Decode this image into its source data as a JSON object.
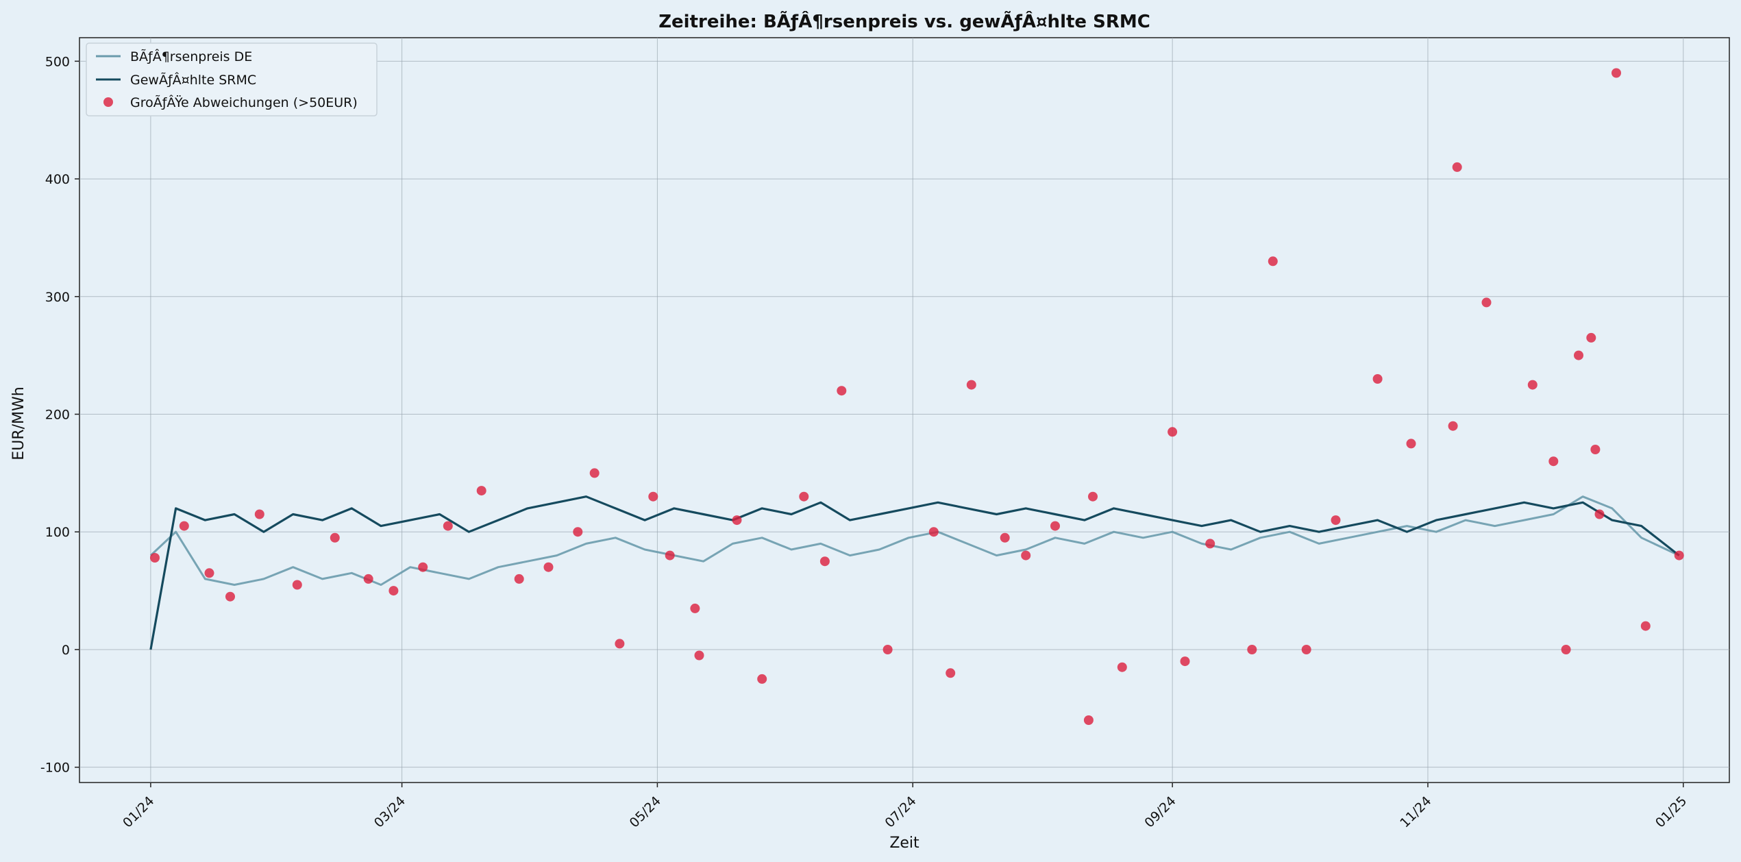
{
  "chart_data": {
    "type": "line",
    "title": "Zeitreihe: BÃƒÂ¶rsenpreis vs. gewÃƒÂ¤hlte SRMC",
    "xlabel": "Zeit",
    "ylabel": "EUR/MWh",
    "xlim": [
      "2023-12-15",
      "2025-01-12"
    ],
    "ylim": [
      -113,
      520
    ],
    "yticks": [
      -100,
      0,
      100,
      200,
      300,
      400,
      500
    ],
    "xticks": [
      {
        "date": "2024-01-01",
        "label": "01/24"
      },
      {
        "date": "2024-03-01",
        "label": "03/24"
      },
      {
        "date": "2024-05-01",
        "label": "05/24"
      },
      {
        "date": "2024-07-01",
        "label": "07/24"
      },
      {
        "date": "2024-09-01",
        "label": "09/24"
      },
      {
        "date": "2024-11-01",
        "label": "11/24"
      },
      {
        "date": "2025-01-01",
        "label": "01/25"
      }
    ],
    "grid": true,
    "legend_position": "top-left",
    "series": [
      {
        "name": "BÃƒÂ¶rsenpreis DE",
        "color": "#6a9bac",
        "x": [
          "2024-01-01",
          "2024-01-07",
          "2024-01-14",
          "2024-01-21",
          "2024-01-28",
          "2024-02-04",
          "2024-02-11",
          "2024-02-18",
          "2024-02-25",
          "2024-03-03",
          "2024-03-10",
          "2024-03-17",
          "2024-03-24",
          "2024-03-31",
          "2024-04-07",
          "2024-04-14",
          "2024-04-21",
          "2024-04-28",
          "2024-05-05",
          "2024-05-12",
          "2024-05-19",
          "2024-05-26",
          "2024-06-02",
          "2024-06-09",
          "2024-06-16",
          "2024-06-23",
          "2024-06-30",
          "2024-07-07",
          "2024-07-14",
          "2024-07-21",
          "2024-07-28",
          "2024-08-04",
          "2024-08-11",
          "2024-08-18",
          "2024-08-25",
          "2024-09-01",
          "2024-09-08",
          "2024-09-15",
          "2024-09-22",
          "2024-09-29",
          "2024-10-06",
          "2024-10-13",
          "2024-10-20",
          "2024-10-27",
          "2024-11-03",
          "2024-11-10",
          "2024-11-17",
          "2024-11-24",
          "2024-12-01",
          "2024-12-08",
          "2024-12-15",
          "2024-12-22",
          "2024-12-31"
        ],
        "values": [
          80,
          100,
          60,
          55,
          60,
          70,
          60,
          65,
          55,
          70,
          65,
          60,
          70,
          75,
          80,
          90,
          95,
          85,
          80,
          75,
          90,
          95,
          85,
          90,
          80,
          85,
          95,
          100,
          90,
          80,
          85,
          95,
          90,
          100,
          95,
          100,
          90,
          85,
          95,
          100,
          90,
          95,
          100,
          105,
          100,
          110,
          105,
          110,
          115,
          130,
          120,
          95,
          80
        ]
      },
      {
        "name": "GewÃƒÂ¤hlte SRMC",
        "color": "#154a5e",
        "x": [
          "2024-01-01",
          "2024-01-07",
          "2024-01-14",
          "2024-01-21",
          "2024-01-28",
          "2024-02-04",
          "2024-02-11",
          "2024-02-18",
          "2024-02-25",
          "2024-03-03",
          "2024-03-10",
          "2024-03-17",
          "2024-03-24",
          "2024-03-31",
          "2024-04-07",
          "2024-04-14",
          "2024-04-21",
          "2024-04-28",
          "2024-05-05",
          "2024-05-12",
          "2024-05-19",
          "2024-05-26",
          "2024-06-02",
          "2024-06-09",
          "2024-06-16",
          "2024-06-23",
          "2024-06-30",
          "2024-07-07",
          "2024-07-14",
          "2024-07-21",
          "2024-07-28",
          "2024-08-04",
          "2024-08-11",
          "2024-08-18",
          "2024-08-25",
          "2024-09-01",
          "2024-09-08",
          "2024-09-15",
          "2024-09-22",
          "2024-09-29",
          "2024-10-06",
          "2024-10-13",
          "2024-10-20",
          "2024-10-27",
          "2024-11-03",
          "2024-11-10",
          "2024-11-17",
          "2024-11-24",
          "2024-12-01",
          "2024-12-08",
          "2024-12-15",
          "2024-12-22",
          "2024-12-31"
        ],
        "values": [
          0,
          120,
          110,
          115,
          100,
          115,
          110,
          120,
          105,
          110,
          115,
          100,
          110,
          120,
          125,
          130,
          120,
          110,
          120,
          115,
          110,
          120,
          115,
          125,
          110,
          115,
          120,
          125,
          120,
          115,
          120,
          115,
          110,
          120,
          115,
          110,
          105,
          110,
          100,
          105,
          100,
          105,
          110,
          100,
          110,
          115,
          120,
          125,
          120,
          125,
          110,
          105,
          80
        ]
      },
      {
        "name": "GroÃƒÂŸe Abweichungen (>50EUR)",
        "type": "scatter",
        "color": "#dc1e3c",
        "x": [
          "2024-01-02",
          "2024-01-09",
          "2024-01-15",
          "2024-01-20",
          "2024-01-27",
          "2024-02-05",
          "2024-02-14",
          "2024-02-22",
          "2024-02-28",
          "2024-03-06",
          "2024-03-12",
          "2024-03-20",
          "2024-03-29",
          "2024-04-05",
          "2024-04-12",
          "2024-04-16",
          "2024-04-22",
          "2024-04-30",
          "2024-05-04",
          "2024-05-10",
          "2024-05-11",
          "2024-05-20",
          "2024-05-26",
          "2024-06-05",
          "2024-06-10",
          "2024-06-14",
          "2024-06-25",
          "2024-07-06",
          "2024-07-10",
          "2024-07-15",
          "2024-07-23",
          "2024-07-28",
          "2024-08-04",
          "2024-08-12",
          "2024-08-13",
          "2024-08-20",
          "2024-09-01",
          "2024-09-04",
          "2024-09-10",
          "2024-09-20",
          "2024-09-25",
          "2024-10-03",
          "2024-10-10",
          "2024-10-20",
          "2024-10-28",
          "2024-11-07",
          "2024-11-08",
          "2024-11-15",
          "2024-11-26",
          "2024-12-01",
          "2024-12-04",
          "2024-12-07",
          "2024-12-10",
          "2024-12-11",
          "2024-12-12",
          "2024-12-16",
          "2024-12-23",
          "2024-12-31"
        ],
        "values": [
          78,
          105,
          65,
          45,
          115,
          55,
          95,
          60,
          50,
          70,
          105,
          135,
          60,
          70,
          100,
          150,
          5,
          130,
          80,
          35,
          -5,
          110,
          -25,
          130,
          75,
          220,
          0,
          100,
          -20,
          225,
          95,
          80,
          105,
          -60,
          130,
          -15,
          185,
          -10,
          90,
          0,
          330,
          0,
          110,
          230,
          175,
          190,
          410,
          295,
          225,
          160,
          0,
          250,
          265,
          170,
          115,
          490,
          20,
          80
        ]
      }
    ]
  }
}
